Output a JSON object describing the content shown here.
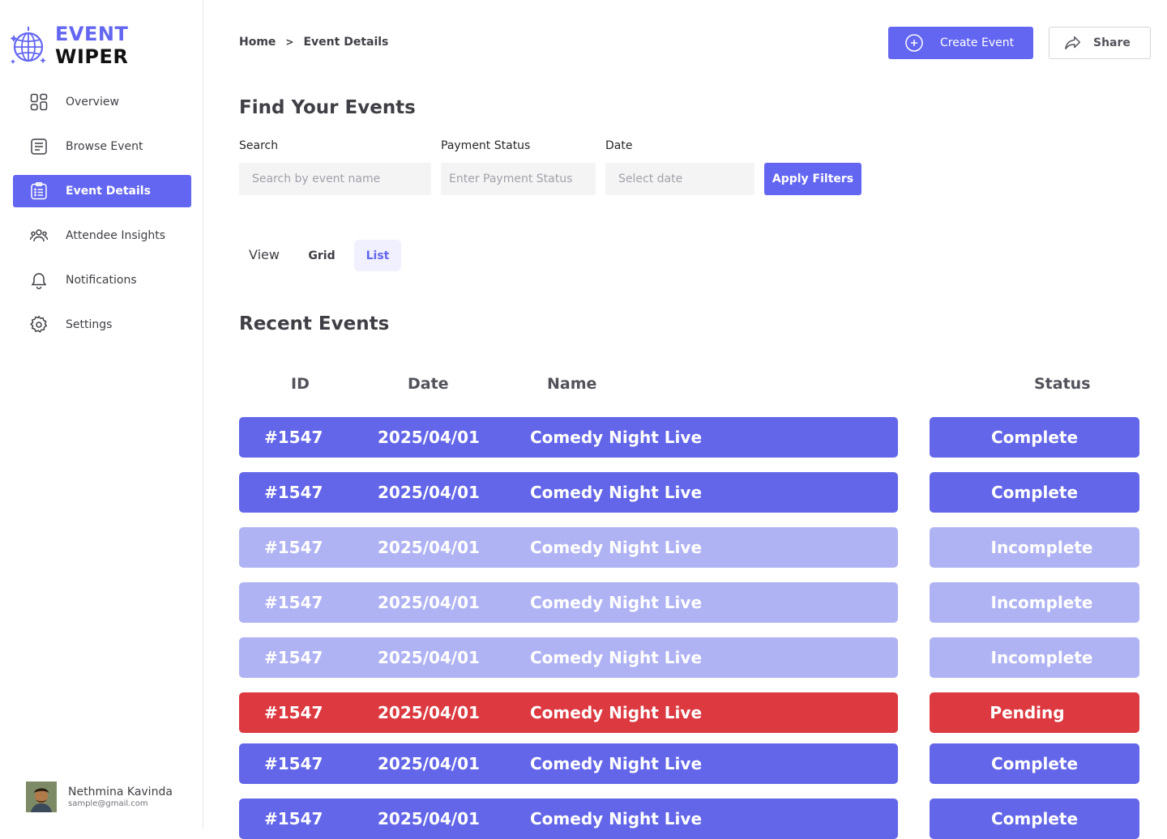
{
  "brand": {
    "part1": "EVENT",
    "part2": "WIPER",
    "accent_color": "#6366f1"
  },
  "sidebar": {
    "items": [
      {
        "label": "Overview",
        "icon": "grid-icon",
        "active": false
      },
      {
        "label": "Browse Event",
        "icon": "document-icon",
        "active": false
      },
      {
        "label": "Event Details",
        "icon": "clipboard-list-icon",
        "active": true
      },
      {
        "label": "Attendee Insights",
        "icon": "users-icon",
        "active": false
      },
      {
        "label": "Notifications",
        "icon": "bell-icon",
        "active": false
      },
      {
        "label": "Settings",
        "icon": "gear-icon",
        "active": false
      }
    ]
  },
  "user": {
    "name": "Nethmina Kavinda",
    "email": "sample@gmail.com"
  },
  "header": {
    "breadcrumb": [
      "Home",
      "Event Details"
    ],
    "breadcrumb_separator": ">",
    "create_label": "Create Event",
    "share_label": "Share"
  },
  "filters": {
    "title": "Find Your Events",
    "search_label": "Search",
    "search_placeholder": "Search by event name",
    "payment_label": "Payment Status",
    "payment_placeholder": "Enter Payment Status",
    "date_label": "Date",
    "date_placeholder": "Select date",
    "apply_label": "Apply Filters"
  },
  "view": {
    "label": "View",
    "grid_label": "Grid",
    "list_label": "List",
    "selected": "List"
  },
  "events": {
    "title": "Recent Events",
    "columns": {
      "id": "ID",
      "date": "Date",
      "name": "Name",
      "status": "Status"
    },
    "status_colors": {
      "Complete": "#6366e8",
      "Incomplete": "#b0b3f3",
      "Pending": "#dc3a40"
    },
    "rows": [
      {
        "id": "#1547",
        "date": "2025/04/01",
        "name": "Comedy Night Live",
        "status": "Complete"
      },
      {
        "id": "#1547",
        "date": "2025/04/01",
        "name": "Comedy Night Live",
        "status": "Complete"
      },
      {
        "id": "#1547",
        "date": "2025/04/01",
        "name": "Comedy Night Live",
        "status": "Incomplete"
      },
      {
        "id": "#1547",
        "date": "2025/04/01",
        "name": "Comedy Night Live",
        "status": "Incomplete"
      },
      {
        "id": "#1547",
        "date": "2025/04/01",
        "name": "Comedy Night Live",
        "status": "Incomplete"
      },
      {
        "id": "#1547",
        "date": "2025/04/01",
        "name": "Comedy Night Live",
        "status": "Pending"
      },
      {
        "id": "#1547",
        "date": "2025/04/01",
        "name": "Comedy Night Live",
        "status": "Complete"
      },
      {
        "id": "#1547",
        "date": "2025/04/01",
        "name": "Comedy Night Live",
        "status": "Complete"
      }
    ]
  }
}
